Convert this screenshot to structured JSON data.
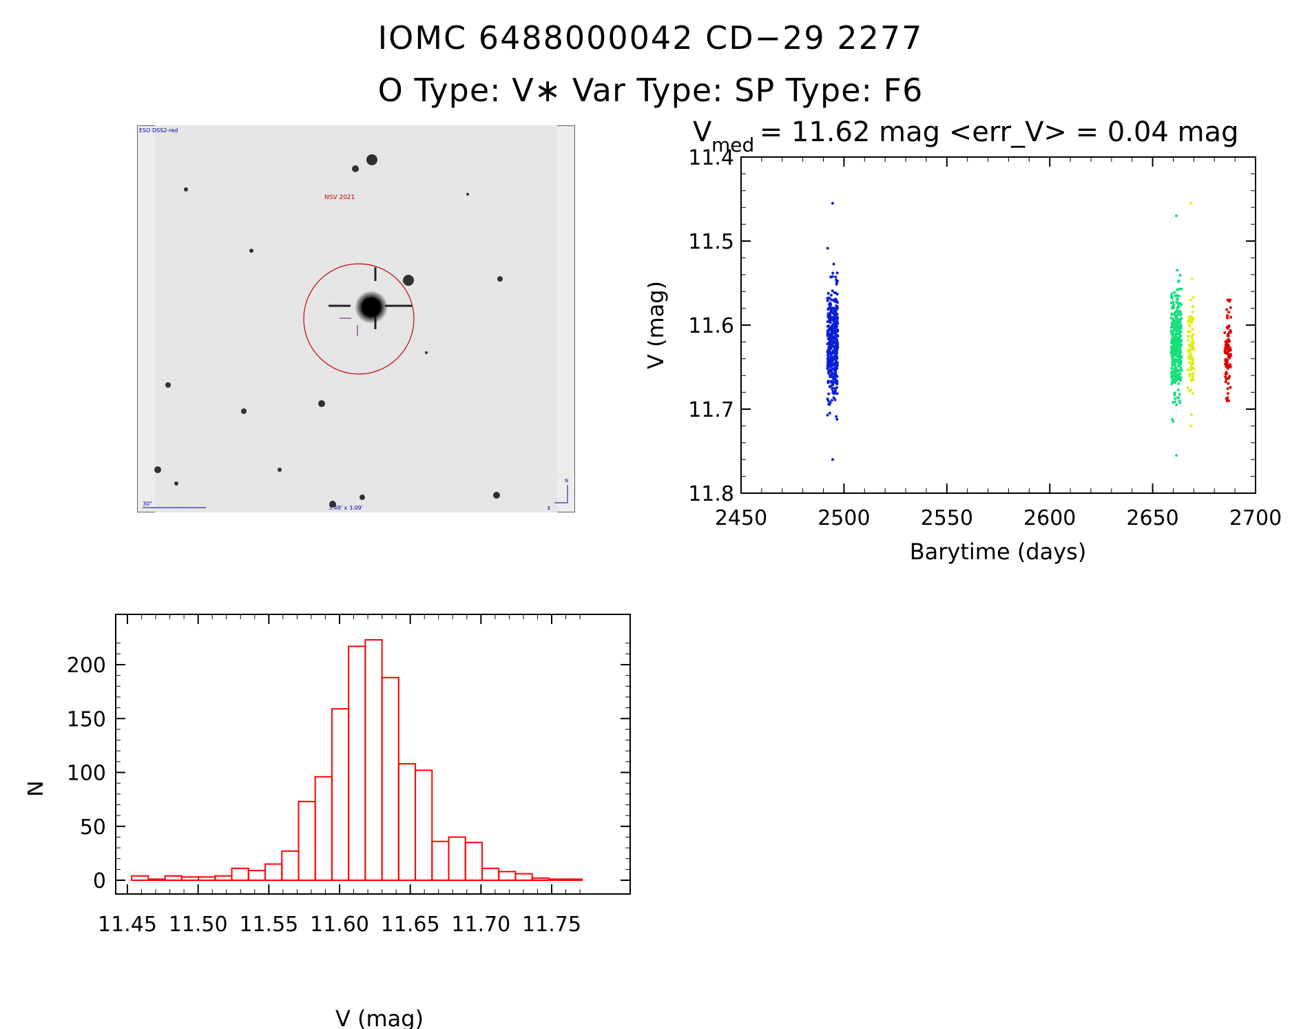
{
  "header": {
    "title_line1": "IOMC 6488000042   CD−29  2277",
    "title_line2": "O Type: V∗  Var Type:    SP Type: F6"
  },
  "finder": {
    "survey_label": "ESO DSS2-red",
    "object_label": "NSV 2021",
    "scale_label": "30\"",
    "fov_label": "3.48' x 3.09'",
    "north_label": "N",
    "east_label": "E"
  },
  "colors": {
    "circle": "#c0000a",
    "blue": "#0a1fd6",
    "green": "#17e07c",
    "yellow": "#e2ee12",
    "red": "#e00000",
    "hist": "#ff0000",
    "label_blue": "#0000aa"
  },
  "chart_data": [
    {
      "type": "scatter",
      "title_prefix": "V",
      "title_sub": "med",
      "title_rest": " = 11.62 mag <err_V> = 0.04 mag",
      "xlabel": "Barytime (days)",
      "ylabel": "V (mag)",
      "xlim": [
        2450,
        2700
      ],
      "ylim": [
        11.8,
        11.4
      ],
      "y_inverted": true,
      "xticks": [
        2450,
        2500,
        2550,
        2600,
        2650,
        2700
      ],
      "yticks": [
        11.4,
        11.5,
        11.6,
        11.7,
        11.8
      ],
      "ytick_labels": [
        "11.4",
        "11.5",
        "11.6",
        "11.7",
        "11.8"
      ],
      "groups": [
        {
          "color": "blue",
          "x_range": [
            2492,
            2497
          ],
          "n": 420,
          "center": 11.62,
          "spread": 0.032,
          "min": 11.455,
          "max": 11.76
        },
        {
          "color": "green",
          "x_range": [
            2659,
            2664
          ],
          "n": 380,
          "center": 11.62,
          "spread": 0.03,
          "min": 11.47,
          "max": 11.755
        },
        {
          "color": "yellow",
          "x_range": [
            2667,
            2670
          ],
          "n": 90,
          "center": 11.63,
          "spread": 0.03,
          "min": 11.455,
          "max": 11.72
        },
        {
          "color": "red",
          "x_range": [
            2685,
            2688
          ],
          "n": 90,
          "center": 11.635,
          "spread": 0.028,
          "min": 11.57,
          "max": 11.69
        }
      ]
    },
    {
      "type": "bar",
      "xlabel": "V (mag)",
      "ylabel": "N",
      "xlim": [
        11.45,
        11.77
      ],
      "ylim": [
        0,
        225
      ],
      "xticks": [
        11.45,
        11.5,
        11.55,
        11.6,
        11.65,
        11.7,
        11.75
      ],
      "xtick_labels": [
        "11.45",
        "11.50",
        "11.55",
        "11.60",
        "11.65",
        "11.70",
        "11.75"
      ],
      "yticks": [
        0,
        50,
        100,
        150,
        200
      ],
      "bin_start": 11.453,
      "bin_width": 0.0118,
      "values": [
        4,
        1,
        4,
        3,
        3,
        4,
        11,
        9,
        15,
        27,
        73,
        96,
        159,
        217,
        223,
        188,
        108,
        102,
        36,
        40,
        35,
        11,
        8,
        6,
        2,
        1,
        1
      ]
    }
  ]
}
